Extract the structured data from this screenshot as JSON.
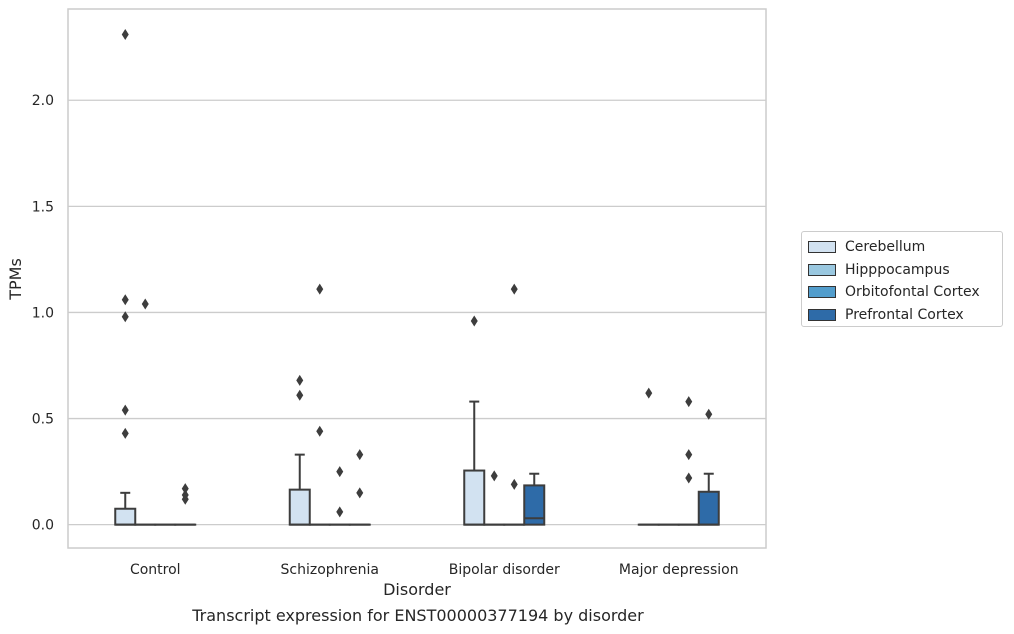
{
  "chart_data": {
    "type": "box",
    "categories": [
      "Control",
      "Schizophrenia",
      "Bipolar disorder",
      "Major depression"
    ],
    "xlabel": "Disorder",
    "ylabel": "TPMs",
    "ylim": [
      -0.11,
      2.43
    ],
    "yticks": [
      0.0,
      0.5,
      1.0,
      1.5,
      2.0
    ],
    "ytick_labels": [
      "0.0",
      "0.5",
      "1.0",
      "1.5",
      "2.0"
    ],
    "grid": true,
    "legend_position": "right",
    "series": [
      {
        "name": "Cerebellum",
        "color": "#d2e2f1",
        "boxes": [
          {
            "q1": 0.0,
            "median": 0.0,
            "q3": 0.075,
            "whisker_low": 0.0,
            "whisker_high": 0.15,
            "outliers": [
              0.43,
              0.54,
              0.98,
              1.06,
              2.31
            ]
          },
          {
            "q1": 0.0,
            "median": 0.0,
            "q3": 0.165,
            "whisker_low": 0.0,
            "whisker_high": 0.33,
            "outliers": [
              0.61,
              0.68
            ]
          },
          {
            "q1": 0.0,
            "median": 0.0,
            "q3": 0.255,
            "whisker_low": 0.0,
            "whisker_high": 0.58,
            "outliers": [
              0.96
            ]
          },
          {
            "q1": 0.0,
            "median": 0.0,
            "q3": 0.0,
            "whisker_low": 0.0,
            "whisker_high": 0.0,
            "outliers": [
              0.62
            ]
          }
        ]
      },
      {
        "name": "Hipppocampus",
        "color": "#9ac8e0",
        "boxes": [
          {
            "q1": 0.0,
            "median": 0.0,
            "q3": 0.0,
            "whisker_low": 0.0,
            "whisker_high": 0.0,
            "outliers": [
              1.04
            ]
          },
          {
            "q1": 0.0,
            "median": 0.0,
            "q3": 0.0,
            "whisker_low": 0.0,
            "whisker_high": 0.0,
            "outliers": [
              0.44,
              1.11
            ]
          },
          {
            "q1": 0.0,
            "median": 0.0,
            "q3": 0.0,
            "whisker_low": 0.0,
            "whisker_high": 0.0,
            "outliers": [
              0.23
            ]
          },
          {
            "q1": 0.0,
            "median": 0.0,
            "q3": 0.0,
            "whisker_low": 0.0,
            "whisker_high": 0.0,
            "outliers": []
          }
        ]
      },
      {
        "name": "Orbitofontal Cortex",
        "color": "#529dcc",
        "boxes": [
          {
            "q1": 0.0,
            "median": 0.0,
            "q3": 0.0,
            "whisker_low": 0.0,
            "whisker_high": 0.0,
            "outliers": []
          },
          {
            "q1": 0.0,
            "median": 0.0,
            "q3": 0.0,
            "whisker_low": 0.0,
            "whisker_high": 0.0,
            "outliers": [
              0.06,
              0.25
            ]
          },
          {
            "q1": 0.0,
            "median": 0.0,
            "q3": 0.0,
            "whisker_low": 0.0,
            "whisker_high": 0.0,
            "outliers": [
              0.19,
              1.11
            ]
          },
          {
            "q1": 0.0,
            "median": 0.0,
            "q3": 0.0,
            "whisker_low": 0.0,
            "whisker_high": 0.0,
            "outliers": [
              0.22,
              0.33,
              0.58
            ]
          }
        ]
      },
      {
        "name": "Prefrontal Cortex",
        "color": "#2e6ba8",
        "boxes": [
          {
            "q1": 0.0,
            "median": 0.0,
            "q3": 0.0,
            "whisker_low": 0.0,
            "whisker_high": 0.0,
            "outliers": [
              0.12,
              0.14,
              0.17
            ]
          },
          {
            "q1": 0.0,
            "median": 0.0,
            "q3": 0.0,
            "whisker_low": 0.0,
            "whisker_high": 0.0,
            "outliers": [
              0.15,
              0.33
            ]
          },
          {
            "q1": 0.0,
            "median": 0.03,
            "q3": 0.185,
            "whisker_low": 0.0,
            "whisker_high": 0.24,
            "outliers": []
          },
          {
            "q1": 0.0,
            "median": 0.0,
            "q3": 0.155,
            "whisker_low": 0.0,
            "whisker_high": 0.24,
            "outliers": [
              0.52
            ]
          }
        ]
      }
    ],
    "caption": "Transcript expression for ENST00000377194 by disorder"
  }
}
